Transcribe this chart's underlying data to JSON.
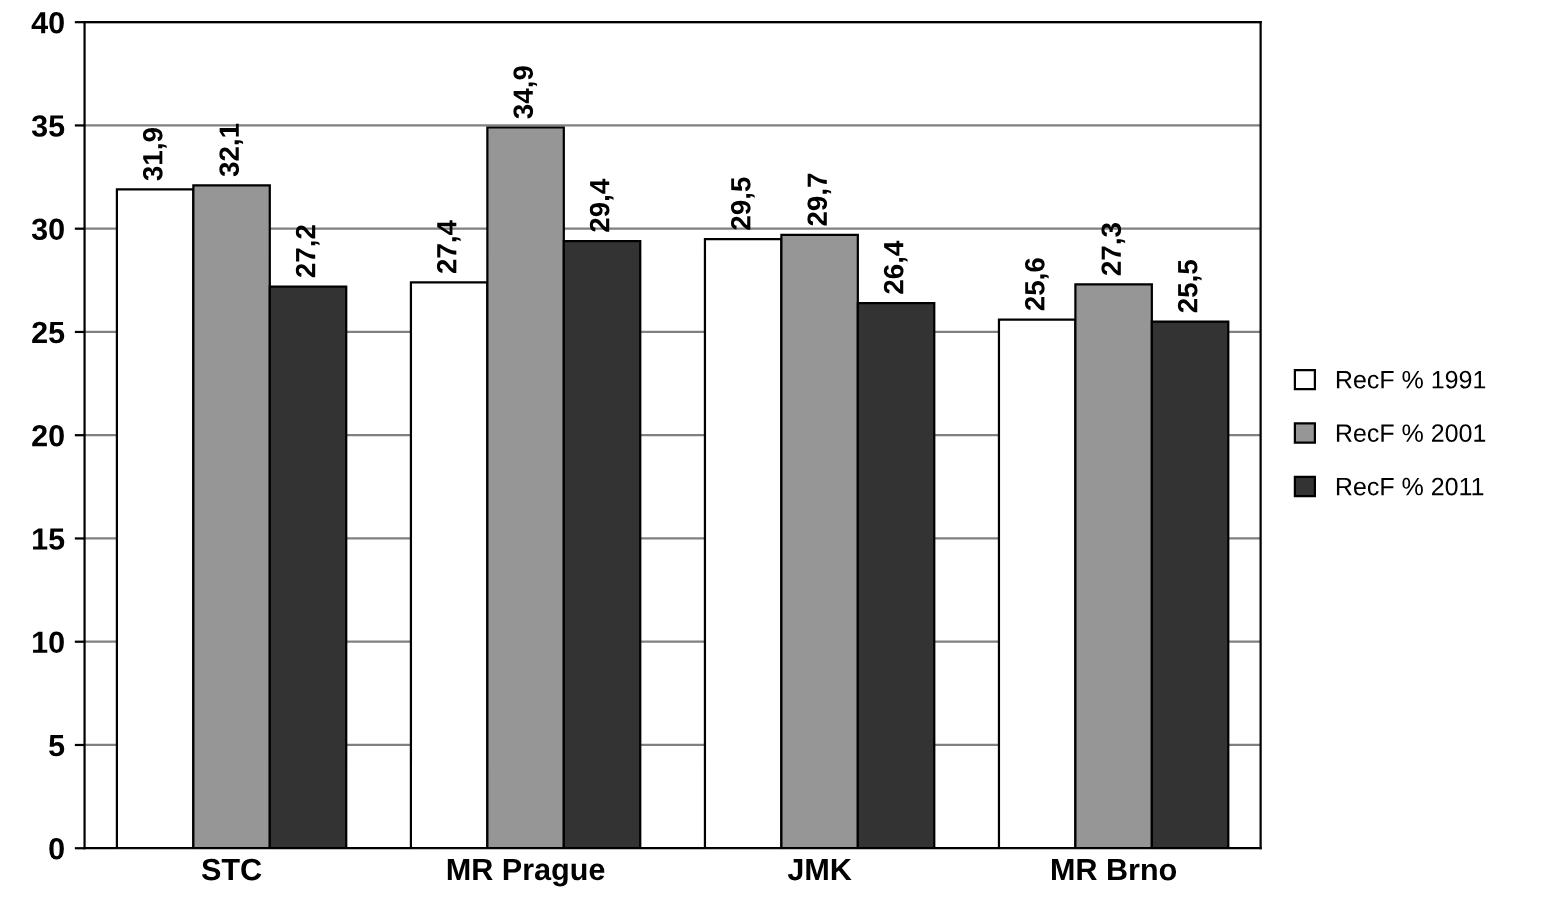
{
  "chart_data": {
    "type": "bar",
    "categories": [
      "STC",
      "MR Prague",
      "JMK",
      "MR Brno"
    ],
    "series": [
      {
        "name": "RecF % 1991",
        "color": "#ffffff",
        "values": [
          31.9,
          27.4,
          29.5,
          25.6
        ],
        "value_labels": [
          "31,9",
          "27,4",
          "29,5",
          "25,6"
        ]
      },
      {
        "name": "RecF % 2001",
        "color": "#969696",
        "values": [
          32.1,
          34.9,
          29.7,
          27.3
        ],
        "value_labels": [
          "32,1",
          "34,9",
          "29,7",
          "27,3"
        ]
      },
      {
        "name": "RecF % 2011",
        "color": "#333333",
        "values": [
          27.2,
          29.4,
          26.4,
          25.5
        ],
        "value_labels": [
          "27,2",
          "29,4",
          "26,4",
          "25,5"
        ]
      }
    ],
    "ylim": [
      0,
      40
    ],
    "yticks": [
      0,
      5,
      10,
      15,
      20,
      25,
      30,
      35,
      40
    ],
    "grid": "y",
    "legend": "right"
  }
}
